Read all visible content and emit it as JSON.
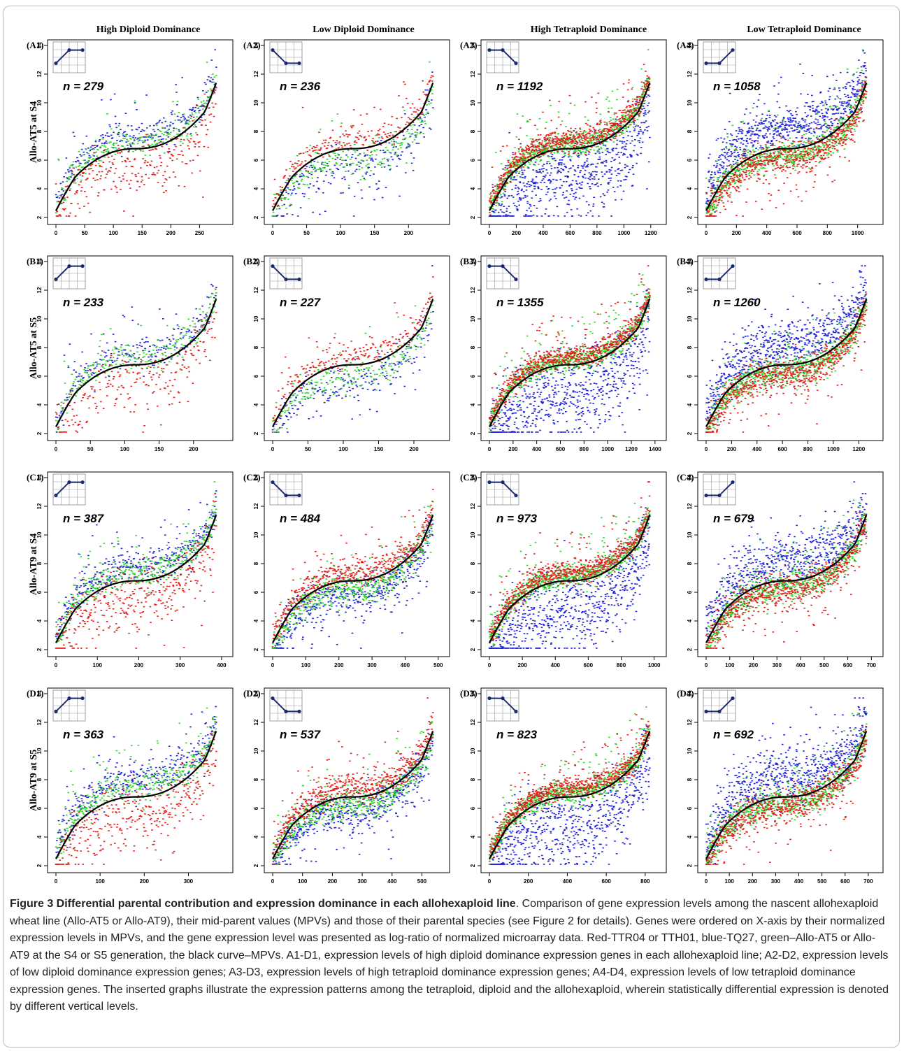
{
  "figure": {
    "caption_title": "Figure 3 Differential parental contribution and expression dominance in each allohexaploid line",
    "caption_body": ". Comparison of gene expression levels among the nascent allohexaploid wheat line (Allo-AT5 or Allo-AT9), their mid-parent values (MPVs) and those of their parental species (see Figure 2 for details). Genes were ordered on X-axis by their normalized expression levels in MPVs, and the gene expression level was presented as log-ratio of normalized microarray data. Red-TTR04 or TTH01, blue-TQ27, green–Allo-AT5 or Allo-AT9 at the S4 or S5 generation, the black curve–MPVs. A1-D1, expression levels of high diploid dominance expression genes in each allohexaploid line; A2-D2, expression levels of low diploid dominance expression genes; A3-D3, expression levels of high tetraploid dominance expression genes; A4-D4, expression levels of low tetraploid dominance expression genes. The inserted graphs illustrate the expression patterns among the tetraploid, diploid and the allohexaploid, wherein statistically differential expression is denoted by different vertical levels."
  },
  "colors": {
    "parent_red": "#e0211b",
    "tq27_blue": "#1f22d6",
    "allo_green": "#2fd62a",
    "mpv_black": "#000000",
    "inset_line": "#1a2a6e"
  },
  "chart_data": {
    "type": "scatter",
    "column_headers": [
      "High Diploid Dominance",
      "Low Diploid Dominance",
      "High Tetraploid Dominance",
      "Low Tetraploid Dominance"
    ],
    "row_labels": [
      "Allo-AT5 at S4",
      "Allo-AT5 at S5",
      "Allo-AT9 at S4",
      "Allo-AT9 at S5"
    ],
    "series": [
      {
        "color": "red",
        "name": "TTR04 or TTH01"
      },
      {
        "color": "blue",
        "name": "TQ27"
      },
      {
        "color": "green",
        "name": "Allo-AT5 or Allo-AT9"
      },
      {
        "color": "black",
        "name": "MPVs"
      }
    ],
    "ylim": [
      2,
      14
    ],
    "y_ticks": [
      2,
      4,
      6,
      8,
      10,
      12,
      14
    ],
    "inset_patterns": {
      "high_diploid": [
        8,
        13,
        13
      ],
      "low_diploid": [
        13,
        8,
        8
      ],
      "high_tetraploid": [
        13,
        13,
        8
      ],
      "low_tetraploid": [
        8,
        8,
        13
      ]
    },
    "panels": [
      {
        "id": "(A1)",
        "n_text": "n = 279",
        "n": 279,
        "pattern": "high_diploid",
        "x_ticks": [
          0,
          50,
          100,
          150,
          200,
          250
        ],
        "offsets": {
          "red": -1.3,
          "blue": 0.9,
          "green": 0.4
        },
        "spread": {
          "red": 1.0,
          "blue": 0.6,
          "green": 0.5
        }
      },
      {
        "id": "(A2)",
        "n_text": "n = 236",
        "n": 236,
        "pattern": "low_diploid",
        "x_ticks": [
          0,
          50,
          100,
          150,
          200
        ],
        "offsets": {
          "red": 0.6,
          "blue": -1.3,
          "green": -0.9
        },
        "spread": {
          "red": 0.5,
          "blue": 0.8,
          "green": 0.6
        }
      },
      {
        "id": "(A3)",
        "n_text": "n = 1192",
        "n": 1192,
        "pattern": "high_tetraploid",
        "x_ticks": [
          0,
          200,
          400,
          600,
          800,
          1000,
          1200
        ],
        "offsets": {
          "red": 0.6,
          "blue": -2.0,
          "green": 0.3
        },
        "spread": {
          "red": 0.4,
          "blue": 1.4,
          "green": 0.4
        }
      },
      {
        "id": "(A4)",
        "n_text": "n = 1058",
        "n": 1058,
        "pattern": "low_tetraploid",
        "x_ticks": [
          0,
          200,
          400,
          600,
          800,
          1000
        ],
        "offsets": {
          "red": -0.7,
          "blue": 1.6,
          "green": -0.4
        },
        "spread": {
          "red": 0.6,
          "blue": 0.8,
          "green": 0.5
        }
      },
      {
        "id": "(B1)",
        "n_text": "n = 233",
        "n": 233,
        "pattern": "high_diploid",
        "x_ticks": [
          0,
          50,
          100,
          150,
          200
        ],
        "offsets": {
          "red": -1.2,
          "blue": 0.8,
          "green": 0.5
        },
        "spread": {
          "red": 1.0,
          "blue": 0.6,
          "green": 0.5
        }
      },
      {
        "id": "(B2)",
        "n_text": "n = 227",
        "n": 227,
        "pattern": "low_diploid",
        "x_ticks": [
          0,
          50,
          100,
          150,
          200
        ],
        "offsets": {
          "red": 0.6,
          "blue": -1.2,
          "green": -0.8
        },
        "spread": {
          "red": 0.5,
          "blue": 0.8,
          "green": 0.6
        }
      },
      {
        "id": "(B3)",
        "n_text": "n = 1355",
        "n": 1355,
        "pattern": "high_tetraploid",
        "x_ticks": [
          0,
          200,
          400,
          600,
          800,
          1000,
          1200,
          1400
        ],
        "offsets": {
          "red": 0.6,
          "blue": -2.0,
          "green": 0.3
        },
        "spread": {
          "red": 0.4,
          "blue": 1.4,
          "green": 0.4
        }
      },
      {
        "id": "(B4)",
        "n_text": "n = 1260",
        "n": 1260,
        "pattern": "low_tetraploid",
        "x_ticks": [
          0,
          200,
          400,
          600,
          800,
          1000,
          1200
        ],
        "offsets": {
          "red": -0.7,
          "blue": 1.5,
          "green": -0.4
        },
        "spread": {
          "red": 0.6,
          "blue": 0.8,
          "green": 0.5
        }
      },
      {
        "id": "(C1)",
        "n_text": "n = 387",
        "n": 387,
        "pattern": "high_diploid",
        "x_ticks": [
          0,
          100,
          200,
          300,
          400
        ],
        "offsets": {
          "red": -1.3,
          "blue": 1.0,
          "green": 0.5
        },
        "spread": {
          "red": 1.1,
          "blue": 0.6,
          "green": 0.5
        }
      },
      {
        "id": "(C2)",
        "n_text": "n = 484",
        "n": 484,
        "pattern": "low_diploid",
        "x_ticks": [
          0,
          100,
          200,
          300,
          400,
          500
        ],
        "offsets": {
          "red": 0.6,
          "blue": -1.0,
          "green": -0.5
        },
        "spread": {
          "red": 0.5,
          "blue": 0.7,
          "green": 0.5
        }
      },
      {
        "id": "(C3)",
        "n_text": "n = 973",
        "n": 973,
        "pattern": "high_tetraploid",
        "x_ticks": [
          0,
          200,
          400,
          600,
          800,
          1000
        ],
        "offsets": {
          "red": 0.6,
          "blue": -2.0,
          "green": 0.3
        },
        "spread": {
          "red": 0.4,
          "blue": 1.4,
          "green": 0.4
        }
      },
      {
        "id": "(C4)",
        "n_text": "n = 679",
        "n": 679,
        "pattern": "low_tetraploid",
        "x_ticks": [
          0,
          100,
          200,
          300,
          400,
          500,
          600,
          700
        ],
        "offsets": {
          "red": -0.6,
          "blue": 1.4,
          "green": -0.4
        },
        "spread": {
          "red": 0.6,
          "blue": 0.9,
          "green": 0.5
        }
      },
      {
        "id": "(D1)",
        "n_text": "n = 363",
        "n": 363,
        "pattern": "high_diploid",
        "x_ticks": [
          0,
          100,
          200,
          300
        ],
        "offsets": {
          "red": -1.3,
          "blue": 1.2,
          "green": 0.7
        },
        "spread": {
          "red": 1.1,
          "blue": 0.6,
          "green": 0.5
        }
      },
      {
        "id": "(D2)",
        "n_text": "n = 537",
        "n": 537,
        "pattern": "low_diploid",
        "x_ticks": [
          0,
          100,
          200,
          300,
          400,
          500
        ],
        "offsets": {
          "red": 0.6,
          "blue": -0.9,
          "green": -0.5
        },
        "spread": {
          "red": 0.5,
          "blue": 0.7,
          "green": 0.5
        }
      },
      {
        "id": "(D3)",
        "n_text": "n = 823",
        "n": 823,
        "pattern": "high_tetraploid",
        "x_ticks": [
          0,
          200,
          400,
          600,
          800
        ],
        "offsets": {
          "red": 0.6,
          "blue": -2.0,
          "green": 0.3
        },
        "spread": {
          "red": 0.4,
          "blue": 1.4,
          "green": 0.4
        }
      },
      {
        "id": "(D4)",
        "n_text": "n = 692",
        "n": 692,
        "pattern": "low_tetraploid",
        "x_ticks": [
          0,
          100,
          200,
          300,
          400,
          500,
          600,
          700
        ],
        "offsets": {
          "red": -0.6,
          "blue": 1.4,
          "green": -0.4
        },
        "spread": {
          "red": 0.6,
          "blue": 0.9,
          "green": 0.5
        }
      }
    ]
  }
}
